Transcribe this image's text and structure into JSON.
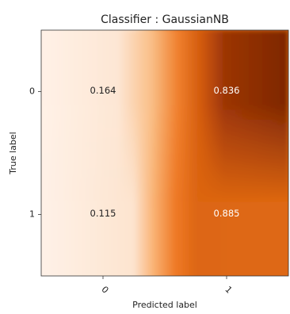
{
  "chart_data": {
    "type": "heatmap",
    "title": "Classifier : GaussianNB",
    "xlabel": "Predicted label",
    "ylabel": "True label",
    "x_categories": [
      "0",
      "1"
    ],
    "y_categories": [
      "0",
      "1"
    ],
    "values": [
      [
        0.164,
        0.836
      ],
      [
        0.115,
        0.885
      ]
    ],
    "value_labels": [
      [
        "0.164",
        "0.836"
      ],
      [
        "0.115",
        "0.885"
      ]
    ],
    "colormap": "Oranges",
    "colors": {
      "low": "#fdeadb",
      "mid": "#f07e2c",
      "high": "#7a2504",
      "text_dark": "#222222",
      "text_light": "#ffffff"
    }
  }
}
